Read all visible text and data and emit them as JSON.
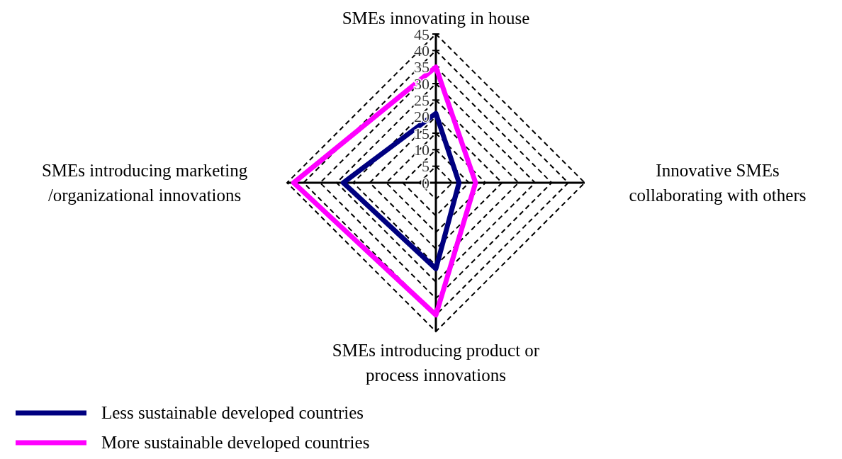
{
  "chart_data": {
    "type": "radar",
    "categories": [
      "SMEs innovating in house",
      "Innovative SMEs collaborating with others",
      "SMEs introducing product or process innovations",
      "SMEs introducing marketing /organizational innovations"
    ],
    "series": [
      {
        "name": "Less sustainable developed countries",
        "color": "#000080",
        "values": [
          21,
          7,
          26,
          28
        ]
      },
      {
        "name": "More sustainable developed countries",
        "color": "#ff00ff",
        "values": [
          35,
          12,
          40,
          43
        ]
      }
    ],
    "ylim": [
      0,
      45
    ],
    "yticks": [
      0,
      5,
      10,
      15,
      20,
      25,
      30,
      35,
      40,
      45
    ],
    "grid": true,
    "legend": "bottom left",
    "marker": "none",
    "line_style": "solid"
  }
}
